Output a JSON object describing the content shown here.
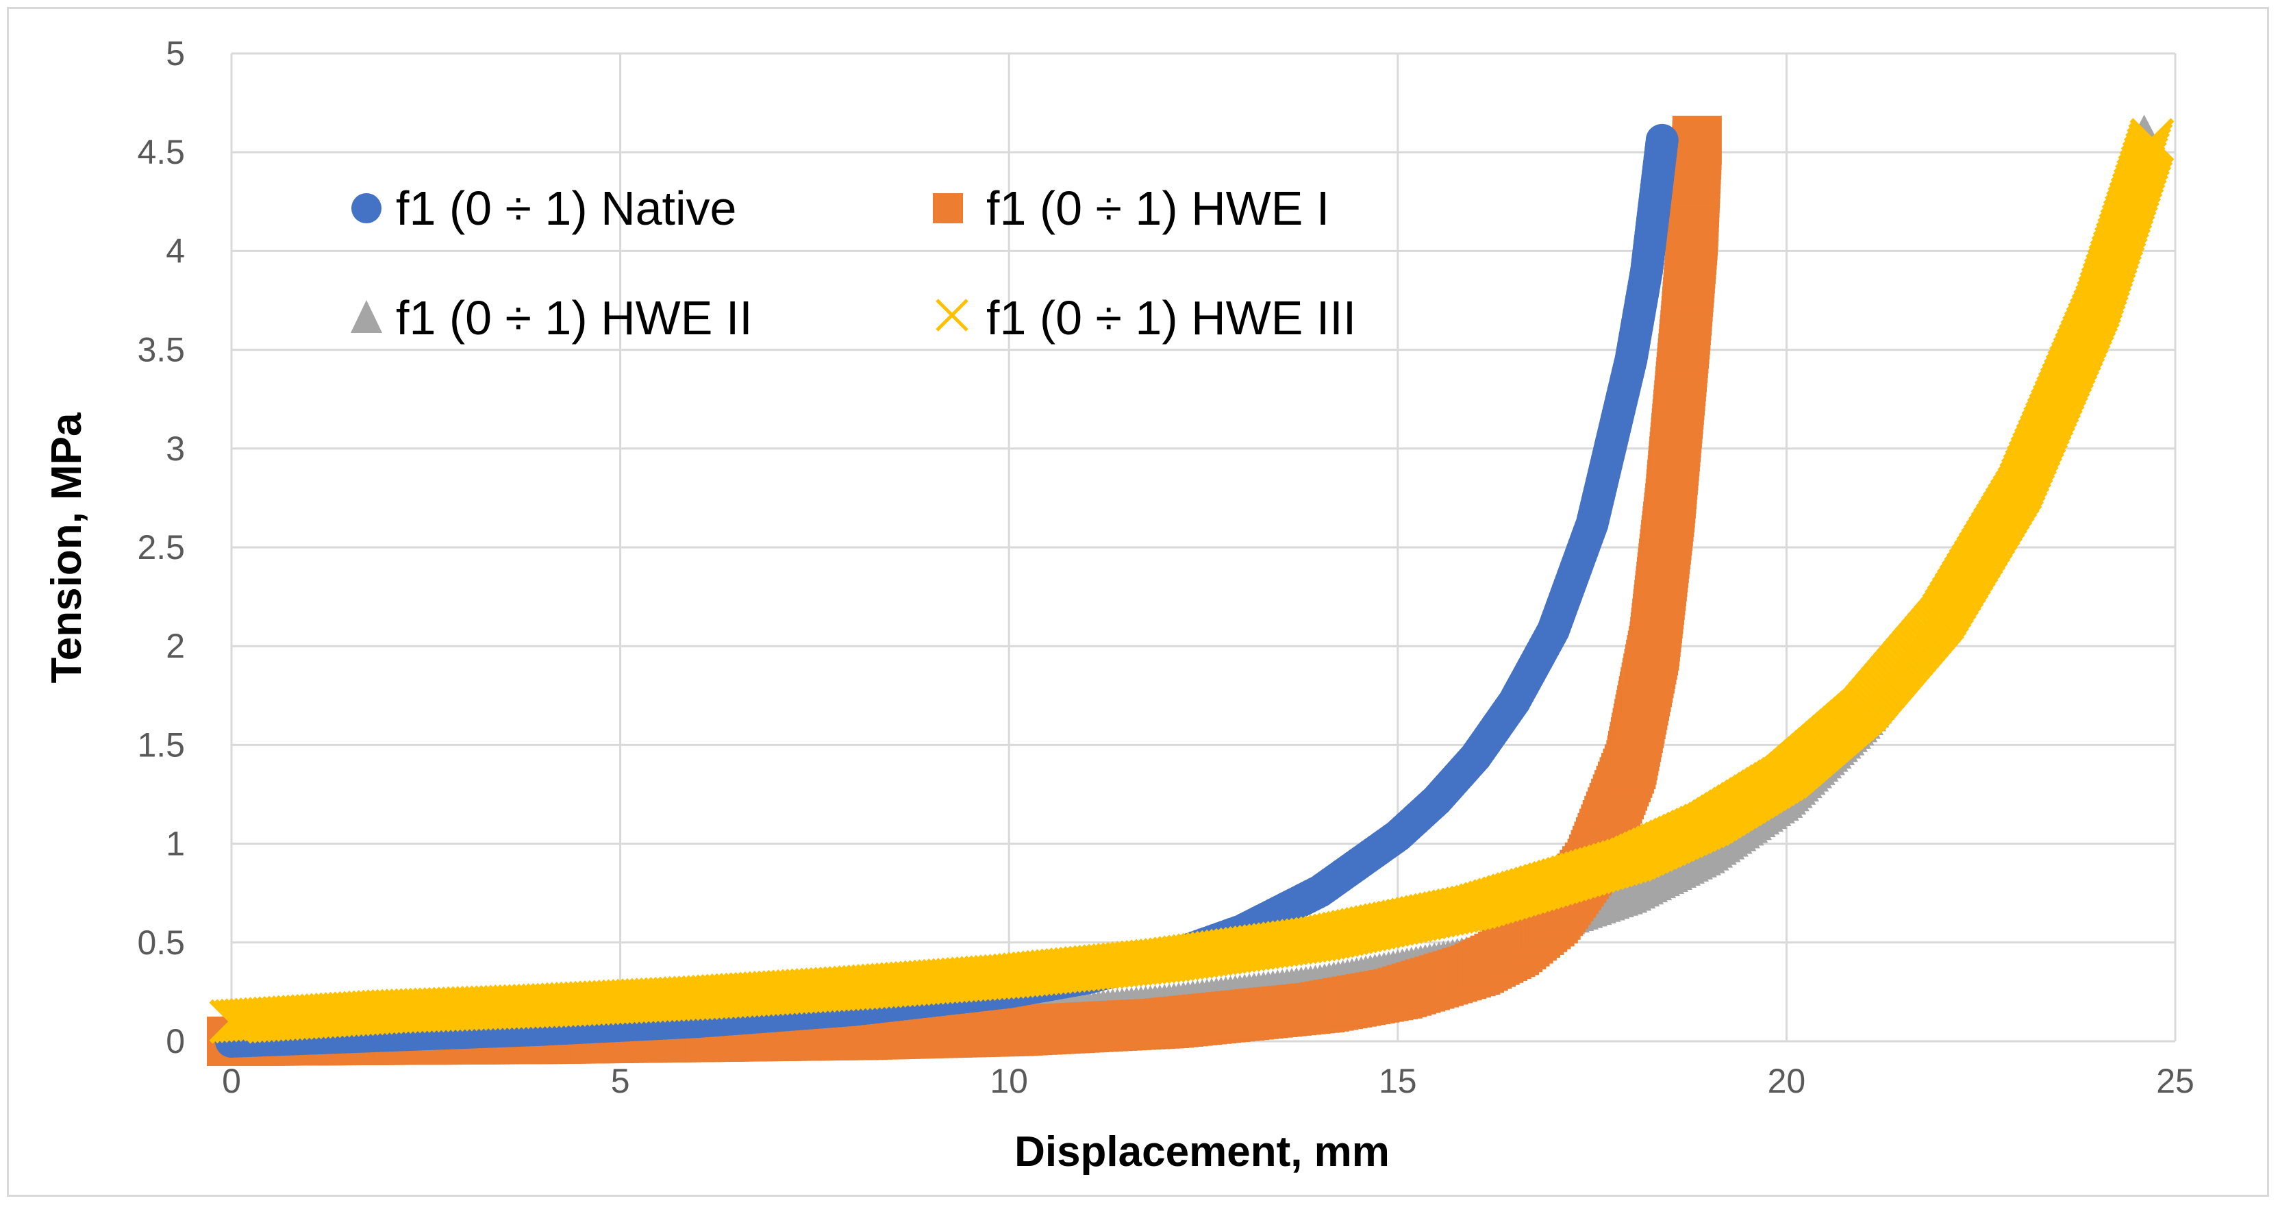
{
  "chart_data": {
    "type": "scatter",
    "title": "",
    "xlabel": "Displacement, mm",
    "ylabel": "Tension, MPa",
    "xlim": [
      0,
      25
    ],
    "ylim": [
      0,
      5
    ],
    "x_ticks": [
      "0",
      "5",
      "10",
      "15",
      "20",
      "25"
    ],
    "y_ticks": [
      "0",
      "0.5",
      "1",
      "1.5",
      "2",
      "2.5",
      "3",
      "3.5",
      "4",
      "4.5",
      "5"
    ],
    "grid": true,
    "legend_position": "top-left, inside plot, two columns",
    "series": [
      {
        "name": "f1 (0 ÷ 1) Native",
        "color": "#4472c4",
        "marker": "circle",
        "points": [
          [
            0,
            0
          ],
          [
            2,
            0.03
          ],
          [
            4,
            0.06
          ],
          [
            6,
            0.1
          ],
          [
            8,
            0.16
          ],
          [
            10,
            0.25
          ],
          [
            11,
            0.32
          ],
          [
            12,
            0.42
          ],
          [
            13,
            0.56
          ],
          [
            14,
            0.76
          ],
          [
            15,
            1.04
          ],
          [
            15.5,
            1.22
          ],
          [
            16,
            1.44
          ],
          [
            16.5,
            1.72
          ],
          [
            17,
            2.08
          ],
          [
            17.5,
            2.62
          ],
          [
            18,
            3.45
          ],
          [
            18.2,
            3.9
          ],
          [
            18.4,
            4.56
          ]
        ]
      },
      {
        "name": "f1 (0 ÷ 1) HWE I",
        "color": "#ed7d31",
        "marker": "square",
        "points": [
          [
            0,
            0
          ],
          [
            4,
            0.01
          ],
          [
            8,
            0.03
          ],
          [
            10,
            0.05
          ],
          [
            12,
            0.09
          ],
          [
            14,
            0.17
          ],
          [
            15,
            0.24
          ],
          [
            16,
            0.36
          ],
          [
            16.5,
            0.46
          ],
          [
            17,
            0.62
          ],
          [
            17.5,
            0.9
          ],
          [
            18,
            1.4
          ],
          [
            18.3,
            2.0
          ],
          [
            18.5,
            2.7
          ],
          [
            18.7,
            3.6
          ],
          [
            18.8,
            4.1
          ],
          [
            18.85,
            4.56
          ]
        ]
      },
      {
        "name": "f1 (0 ÷ 1) HWE II",
        "color": "#a5a5a5",
        "marker": "triangle",
        "points": [
          [
            0,
            0
          ],
          [
            4,
            0.03
          ],
          [
            8,
            0.08
          ],
          [
            10,
            0.13
          ],
          [
            12,
            0.2
          ],
          [
            14,
            0.3
          ],
          [
            16,
            0.45
          ],
          [
            18,
            0.72
          ],
          [
            19,
            0.92
          ],
          [
            20,
            1.2
          ],
          [
            21,
            1.6
          ],
          [
            22,
            2.14
          ],
          [
            23,
            2.86
          ],
          [
            24,
            3.8
          ],
          [
            24.6,
            4.6
          ]
        ]
      },
      {
        "name": "f1 (0 ÷ 1) HWE III",
        "color": "#ffc000",
        "marker": "x",
        "points": [
          [
            0,
            0.1
          ],
          [
            2,
            0.15
          ],
          [
            4,
            0.18
          ],
          [
            6,
            0.22
          ],
          [
            8,
            0.27
          ],
          [
            10,
            0.33
          ],
          [
            12,
            0.41
          ],
          [
            14,
            0.52
          ],
          [
            16,
            0.68
          ],
          [
            18,
            0.92
          ],
          [
            19,
            1.1
          ],
          [
            20,
            1.34
          ],
          [
            21,
            1.68
          ],
          [
            22,
            2.14
          ],
          [
            23,
            2.8
          ],
          [
            24,
            3.72
          ],
          [
            24.7,
            4.56
          ]
        ]
      }
    ]
  }
}
